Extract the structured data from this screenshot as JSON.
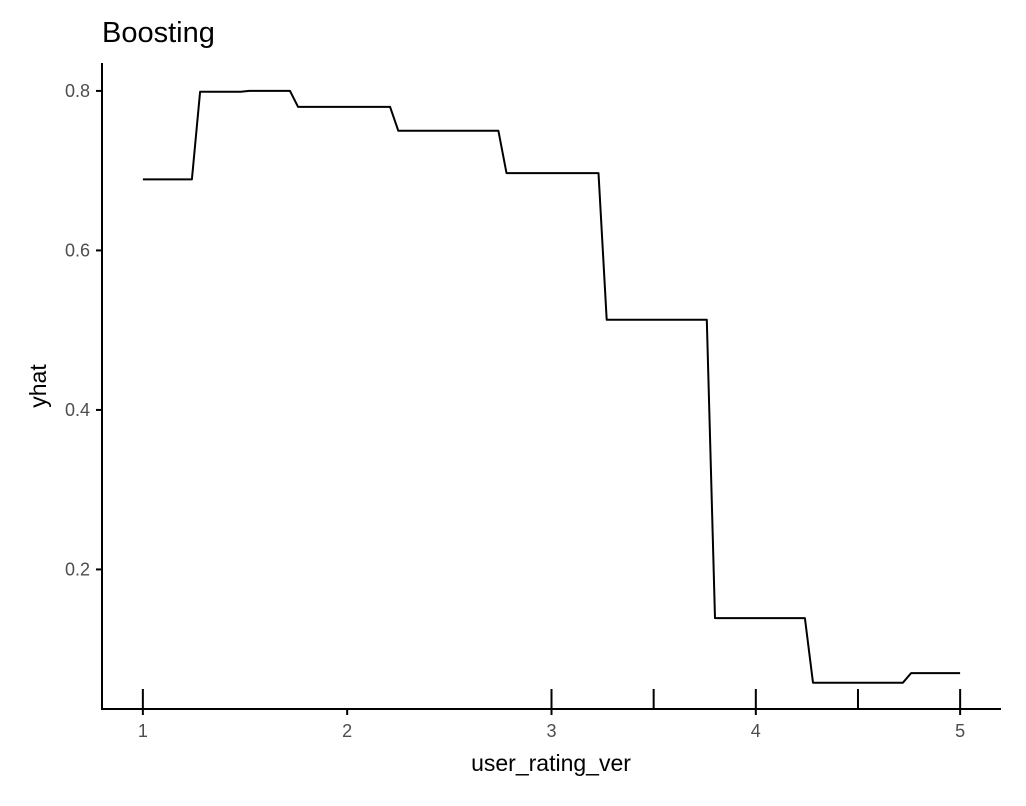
{
  "chart_data": {
    "type": "line",
    "title": "Boosting",
    "xlabel": "user_rating_ver",
    "ylabel": "yhat",
    "x_ticks": [
      1,
      2,
      3,
      4,
      5
    ],
    "y_ticks": [
      0.2,
      0.4,
      0.6,
      0.8
    ],
    "rug_x": [
      1,
      3,
      3.5,
      4,
      4.5,
      5
    ],
    "xlim": [
      0.8,
      5.2
    ],
    "ylim": [
      0.025,
      0.835
    ],
    "grid": false,
    "series": [
      {
        "x": [
          1.0,
          1.24,
          1.28,
          1.48,
          1.52,
          1.72,
          1.76,
          2.21,
          2.25,
          2.74,
          2.78,
          3.23,
          3.27,
          3.76,
          3.8,
          4.24,
          4.28,
          4.72,
          4.76,
          5.0
        ],
        "y": [
          0.689,
          0.689,
          0.799,
          0.799,
          0.8,
          0.8,
          0.78,
          0.78,
          0.75,
          0.75,
          0.697,
          0.697,
          0.513,
          0.513,
          0.139,
          0.139,
          0.058,
          0.058,
          0.07,
          0.07
        ]
      }
    ]
  }
}
